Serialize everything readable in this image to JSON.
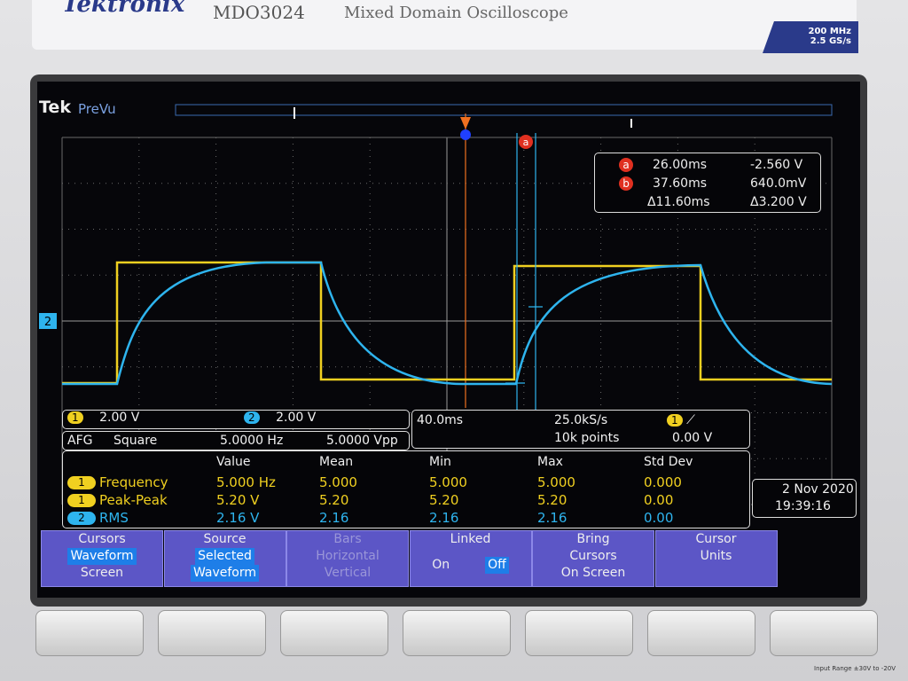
{
  "header": {
    "brand": "Tektronix",
    "model": "MDO3024",
    "description": "Mixed Domain Oscilloscope",
    "badge": [
      "200 MHz",
      "2.5 GS/s"
    ]
  },
  "screen": {
    "logo": "Tek",
    "mode": "PreVu",
    "cursor_marker": "a",
    "ground_marker": "2"
  },
  "cursor_readout": {
    "rows": [
      {
        "marker": "a",
        "time": "26.00ms",
        "voltage": "-2.560 V"
      },
      {
        "marker": "b",
        "time": "37.60ms",
        "voltage": "640.0mV"
      }
    ],
    "delta_time": "Δ11.60ms",
    "delta_voltage": "Δ3.200 V"
  },
  "channels": [
    {
      "number": "1",
      "scale": "2.00 V"
    },
    {
      "number": "2",
      "scale": "2.00 V"
    }
  ],
  "afg": {
    "label": "AFG",
    "waveform": "Square",
    "frequency": "5.0000 Hz",
    "amplitude": "5.0000 Vpp"
  },
  "acquisition": {
    "time_scale": "40.0ms",
    "sample_rate": "25.0kS/s",
    "record_length": "10k points",
    "trigger_source": "1",
    "trigger_level": "0.00 V"
  },
  "measurements": {
    "headers": [
      "Value",
      "Mean",
      "Min",
      "Max",
      "Std Dev"
    ],
    "rows": [
      {
        "source": "1",
        "name": "Frequency",
        "cells": [
          "5.000 Hz",
          "5.000",
          "5.000",
          "5.000",
          "0.000"
        ]
      },
      {
        "source": "1",
        "name": "Peak-Peak",
        "cells": [
          "5.20 V",
          "5.20",
          "5.20",
          "5.20",
          "0.00"
        ]
      },
      {
        "source": "2",
        "name": "RMS",
        "cells": [
          "2.16 V",
          "2.16",
          "2.16",
          "2.16",
          "0.00"
        ]
      }
    ]
  },
  "datetime": {
    "date": "2 Nov 2020",
    "time": "19:39:16"
  },
  "menu": [
    {
      "lines": [
        "Cursors",
        "Waveform",
        "Screen"
      ]
    },
    {
      "lines": [
        "Source",
        "Selected",
        "Waveform"
      ]
    },
    {
      "lines": [
        "Bars",
        "Horizontal",
        "Vertical"
      ]
    },
    {
      "lines": [
        "Linked",
        "On",
        "Off"
      ]
    },
    {
      "lines": [
        "Bring",
        "Cursors",
        "On Screen"
      ]
    },
    {
      "lines": [
        "Cursor",
        "Units"
      ]
    }
  ],
  "footer_label": "Input Range ±30V to -20V"
}
